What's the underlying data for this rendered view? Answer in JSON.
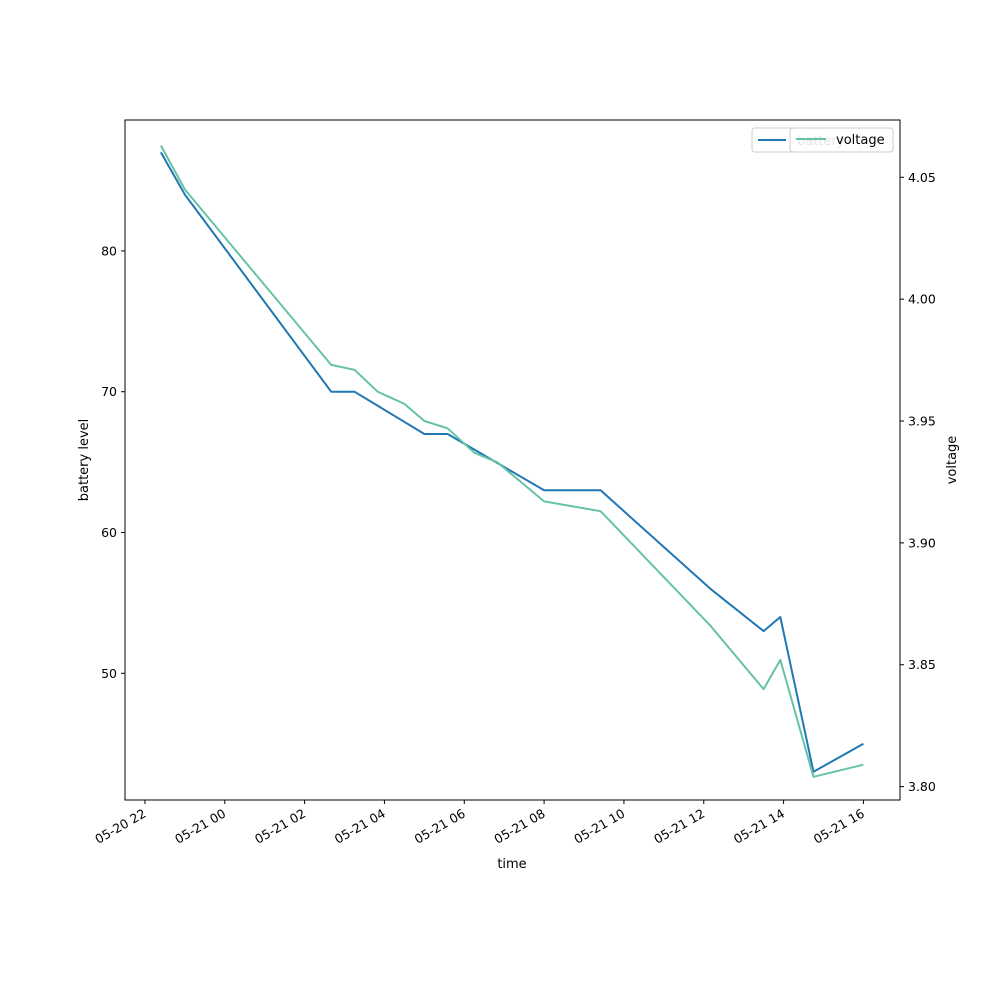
{
  "chart_data": {
    "type": "line",
    "xlabel": "time",
    "ylabel_left": "battery level",
    "ylabel_right": "voltage",
    "x_ticks": [
      "05-20 22",
      "05-21 00",
      "05-21 02",
      "05-21 04",
      "05-21 06",
      "05-21 08",
      "05-21 10",
      "05-21 12",
      "05-21 14",
      "05-21 16"
    ],
    "y_left_ticks": [
      "50",
      "60",
      "70",
      "80"
    ],
    "y_right_ticks": [
      "3.80",
      "3.85",
      "3.90",
      "3.95",
      "4.00",
      "4.05"
    ],
    "ylim_left": [
      41,
      89.3
    ],
    "ylim_right": [
      3.7945,
      4.0735
    ],
    "xlim": [
      "2024-05-20 21:30",
      "2024-05-21 16:55"
    ],
    "legend_position": "upper right",
    "series": [
      {
        "name": "battery",
        "axis": "left",
        "color": "#1f77b4",
        "points": [
          [
            "2024-05-20 22:24",
            87
          ],
          [
            "2024-05-20 23:00",
            84
          ],
          [
            "2024-05-21 02:40",
            70
          ],
          [
            "2024-05-21 03:15",
            70
          ],
          [
            "2024-05-21 05:00",
            67
          ],
          [
            "2024-05-21 05:35",
            67
          ],
          [
            "2024-05-21 08:00",
            63
          ],
          [
            "2024-05-21 09:25",
            63
          ],
          [
            "2024-05-21 12:10",
            56
          ],
          [
            "2024-05-21 13:30",
            53
          ],
          [
            "2024-05-21 13:55",
            54
          ],
          [
            "2024-05-21 14:45",
            43
          ],
          [
            "2024-05-21 16:00",
            45
          ]
        ]
      },
      {
        "name": "voltage",
        "axis": "right",
        "color": "#66c2a5",
        "points": [
          [
            "2024-05-20 22:24",
            4.063
          ],
          [
            "2024-05-20 23:00",
            4.045
          ],
          [
            "2024-05-21 02:40",
            3.973
          ],
          [
            "2024-05-21 03:15",
            3.971
          ],
          [
            "2024-05-21 03:50",
            3.962
          ],
          [
            "2024-05-21 04:30",
            3.957
          ],
          [
            "2024-05-21 05:00",
            3.95
          ],
          [
            "2024-05-21 05:35",
            3.947
          ],
          [
            "2024-05-21 06:15",
            3.937
          ],
          [
            "2024-05-21 06:50",
            3.933
          ],
          [
            "2024-05-21 08:00",
            3.917
          ],
          [
            "2024-05-21 09:25",
            3.913
          ],
          [
            "2024-05-21 12:10",
            3.866
          ],
          [
            "2024-05-21 13:30",
            3.84
          ],
          [
            "2024-05-21 13:55",
            3.852
          ],
          [
            "2024-05-21 14:45",
            3.804
          ],
          [
            "2024-05-21 16:00",
            3.809
          ]
        ]
      }
    ]
  }
}
